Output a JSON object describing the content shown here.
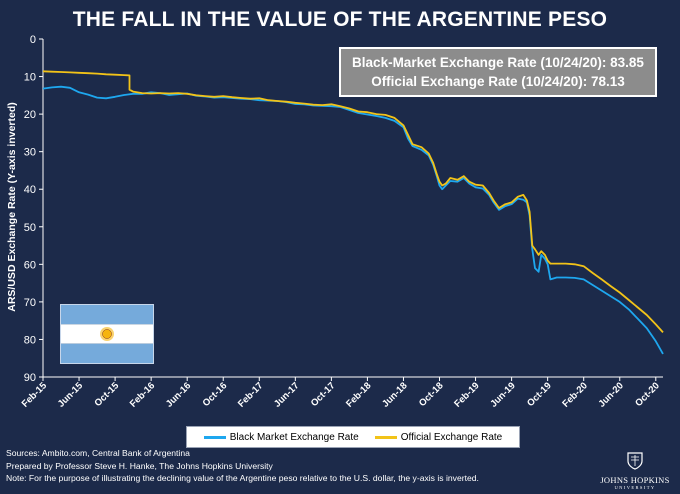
{
  "chart_data": {
    "type": "line",
    "title": "THE FALL IN THE VALUE OF THE ARGENTINE PESO",
    "ylabel": "ARS/USD Exchange Rate (Y-axis inverted)",
    "xlabel": "",
    "y_inverted": true,
    "ylim": [
      0,
      90
    ],
    "yticks": [
      0,
      10,
      20,
      30,
      40,
      50,
      60,
      70,
      80,
      90
    ],
    "xlim": [
      0,
      68.8
    ],
    "xticks": [
      {
        "label": "Feb-15",
        "x": 0
      },
      {
        "label": "Jun-15",
        "x": 4
      },
      {
        "label": "Oct-15",
        "x": 8
      },
      {
        "label": "Feb-16",
        "x": 12
      },
      {
        "label": "Jun-16",
        "x": 16
      },
      {
        "label": "Oct-16",
        "x": 20
      },
      {
        "label": "Feb-17",
        "x": 24
      },
      {
        "label": "Jun-17",
        "x": 28
      },
      {
        "label": "Oct-17",
        "x": 32
      },
      {
        "label": "Feb-18",
        "x": 36
      },
      {
        "label": "Jun-18",
        "x": 40
      },
      {
        "label": "Oct-18",
        "x": 44
      },
      {
        "label": "Feb-19",
        "x": 48
      },
      {
        "label": "Jun-19",
        "x": 52
      },
      {
        "label": "Oct-19",
        "x": 56
      },
      {
        "label": "Feb-20",
        "x": 60
      },
      {
        "label": "Jun-20",
        "x": 64
      },
      {
        "label": "Oct-20",
        "x": 68
      }
    ],
    "grid": false,
    "legend_position": "bottom-center",
    "series": [
      {
        "name": "Black Market Exchange Rate",
        "color": "#1ea7ef",
        "points": [
          [
            0,
            13.2
          ],
          [
            1,
            12.9
          ],
          [
            2,
            12.7
          ],
          [
            3,
            13.0
          ],
          [
            4,
            14.2
          ],
          [
            5,
            14.8
          ],
          [
            6,
            15.6
          ],
          [
            7,
            15.8
          ],
          [
            8,
            15.4
          ],
          [
            9,
            14.9
          ],
          [
            10,
            14.6
          ],
          [
            11,
            14.6
          ],
          [
            12,
            14.2
          ],
          [
            13,
            14.4
          ],
          [
            14,
            14.9
          ],
          [
            15,
            14.7
          ],
          [
            16,
            14.5
          ],
          [
            17,
            15.1
          ],
          [
            18,
            15.3
          ],
          [
            19,
            15.6
          ],
          [
            20,
            15.5
          ],
          [
            21,
            15.7
          ],
          [
            22,
            15.9
          ],
          [
            23,
            16.0
          ],
          [
            24,
            16.3
          ],
          [
            25,
            16.4
          ],
          [
            26,
            16.5
          ],
          [
            27,
            16.8
          ],
          [
            28,
            17.3
          ],
          [
            29,
            17.4
          ],
          [
            30,
            17.7
          ],
          [
            31,
            17.8
          ],
          [
            32,
            17.9
          ],
          [
            33,
            18.1
          ],
          [
            34,
            18.9
          ],
          [
            35,
            19.7
          ],
          [
            36,
            20.1
          ],
          [
            37,
            20.5
          ],
          [
            38,
            21.0
          ],
          [
            39,
            21.8
          ],
          [
            40,
            23.5
          ],
          [
            40.5,
            26.5
          ],
          [
            41,
            28.5
          ],
          [
            42,
            29.5
          ],
          [
            42.8,
            31.0
          ],
          [
            43.3,
            33.5
          ],
          [
            43.7,
            36.5
          ],
          [
            44,
            39.0
          ],
          [
            44.3,
            40.0
          ],
          [
            44.7,
            39.0
          ],
          [
            45.2,
            37.8
          ],
          [
            46,
            38.0
          ],
          [
            46.7,
            37.0
          ],
          [
            47.3,
            38.5
          ],
          [
            48,
            39.5
          ],
          [
            48.8,
            39.8
          ],
          [
            49.5,
            41.5
          ],
          [
            50,
            43.5
          ],
          [
            50.6,
            45.5
          ],
          [
            51.3,
            44.5
          ],
          [
            52,
            44.0
          ],
          [
            52.7,
            42.5
          ],
          [
            53.3,
            42.8
          ],
          [
            53.7,
            43.5
          ],
          [
            54,
            47.0
          ],
          [
            54.3,
            56.0
          ],
          [
            54.6,
            61.0
          ],
          [
            55,
            62.0
          ],
          [
            55.3,
            57.5
          ],
          [
            55.7,
            58.5
          ],
          [
            56,
            60.0
          ],
          [
            56.3,
            64.0
          ],
          [
            57,
            63.5
          ],
          [
            58,
            63.5
          ],
          [
            59,
            63.6
          ],
          [
            60,
            64.0
          ],
          [
            61,
            65.5
          ],
          [
            62,
            67.0
          ],
          [
            63,
            68.5
          ],
          [
            64,
            70.0
          ],
          [
            65,
            72.0
          ],
          [
            66,
            74.5
          ],
          [
            67,
            77.0
          ],
          [
            68,
            80.5
          ],
          [
            68.8,
            83.85
          ]
        ]
      },
      {
        "name": "Official Exchange Rate",
        "color": "#f2c318",
        "points": [
          [
            0,
            8.6
          ],
          [
            1,
            8.7
          ],
          [
            2,
            8.8
          ],
          [
            3,
            8.9
          ],
          [
            4,
            9.0
          ],
          [
            5,
            9.1
          ],
          [
            6,
            9.2
          ],
          [
            7,
            9.4
          ],
          [
            8,
            9.5
          ],
          [
            9,
            9.6
          ],
          [
            9.6,
            9.7
          ],
          [
            9.6,
            13.5
          ],
          [
            10,
            14.0
          ],
          [
            11,
            14.4
          ],
          [
            12,
            14.5
          ],
          [
            13,
            14.4
          ],
          [
            14,
            14.5
          ],
          [
            15,
            14.4
          ],
          [
            16,
            14.6
          ],
          [
            17,
            15.0
          ],
          [
            18,
            15.2
          ],
          [
            19,
            15.4
          ],
          [
            20,
            15.2
          ],
          [
            21,
            15.5
          ],
          [
            22,
            15.7
          ],
          [
            23,
            15.9
          ],
          [
            24,
            15.8
          ],
          [
            25,
            16.3
          ],
          [
            26,
            16.5
          ],
          [
            27,
            16.7
          ],
          [
            28,
            17.0
          ],
          [
            29,
            17.2
          ],
          [
            30,
            17.5
          ],
          [
            31,
            17.6
          ],
          [
            32,
            17.4
          ],
          [
            33,
            17.9
          ],
          [
            34,
            18.5
          ],
          [
            35,
            19.3
          ],
          [
            36,
            19.5
          ],
          [
            37,
            20.0
          ],
          [
            38,
            20.2
          ],
          [
            39,
            21.0
          ],
          [
            40,
            23.0
          ],
          [
            40.5,
            25.5
          ],
          [
            41,
            28.0
          ],
          [
            42,
            28.8
          ],
          [
            42.8,
            30.5
          ],
          [
            43.3,
            33.0
          ],
          [
            43.7,
            36.0
          ],
          [
            44,
            38.0
          ],
          [
            44.3,
            39.0
          ],
          [
            44.7,
            38.5
          ],
          [
            45.2,
            37.0
          ],
          [
            46,
            37.5
          ],
          [
            46.7,
            36.5
          ],
          [
            47.3,
            38.0
          ],
          [
            48,
            38.8
          ],
          [
            48.8,
            39.0
          ],
          [
            49.5,
            41.0
          ],
          [
            50,
            43.0
          ],
          [
            50.6,
            45.0
          ],
          [
            51.3,
            44.0
          ],
          [
            52,
            43.5
          ],
          [
            52.7,
            42.0
          ],
          [
            53.3,
            41.5
          ],
          [
            53.7,
            43.0
          ],
          [
            54,
            46.0
          ],
          [
            54.3,
            55.0
          ],
          [
            54.6,
            56.0
          ],
          [
            55,
            57.5
          ],
          [
            55.3,
            56.5
          ],
          [
            55.7,
            57.5
          ],
          [
            56,
            59.0
          ],
          [
            56.3,
            59.8
          ],
          [
            57,
            59.8
          ],
          [
            58,
            59.8
          ],
          [
            59,
            60.0
          ],
          [
            60,
            60.5
          ],
          [
            61,
            62.3
          ],
          [
            62,
            64.0
          ],
          [
            63,
            65.8
          ],
          [
            64,
            67.5
          ],
          [
            65,
            69.5
          ],
          [
            66,
            71.5
          ],
          [
            67,
            73.5
          ],
          [
            68,
            76.0
          ],
          [
            68.8,
            78.13
          ]
        ]
      }
    ],
    "annotations": [
      "Black-Market Exchange Rate (10/24/20): 83.85",
      "Official Exchange Rate (10/24/20): 78.13"
    ]
  },
  "legend": {
    "black_market_label": "Black Market Exchange Rate",
    "official_label": "Official Exchange Rate"
  },
  "footer": {
    "line1": "Sources: Ambito.com, Central Bank of Argentina",
    "line2": "Prepared by Professor Steve H. Hanke, The Johns Hopkins University",
    "line3": "Note: For the purpose of illustrating the declining value of the Argentine peso relative to the U.S. dollar, the y-axis is inverted."
  },
  "logo": {
    "name": "JOHNS HOPKINS",
    "sub": "UNIVERSITY"
  },
  "flag": {
    "stripe_color": "#75aadb",
    "center_color": "#ffffff",
    "sun_color": "#f6b40e",
    "icon": "argentina-flag-icon"
  },
  "colors": {
    "background": "#1c2a4a",
    "black_market": "#1ea7ef",
    "official": "#f2c318",
    "infobox": "#8c8c8c"
  }
}
